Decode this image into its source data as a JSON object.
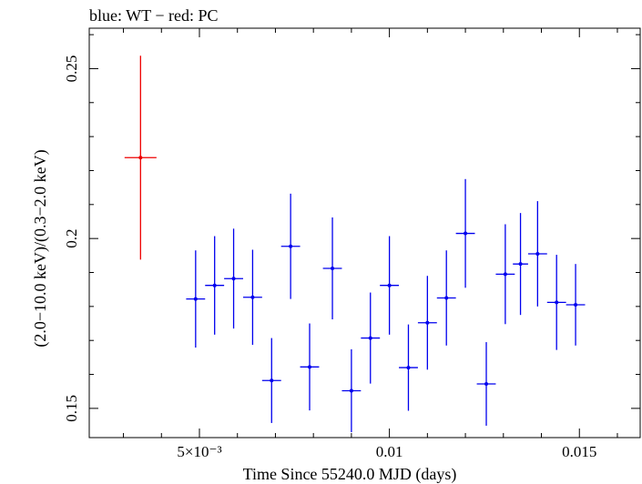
{
  "chart_data": {
    "type": "scatter",
    "title": "blue: WT − red: PC",
    "xlabel": "Time Since 55240.0 MJD (days)",
    "ylabel": "(2.0−10.0 keV)/(0.3−2.0 keV)",
    "xlim": [
      0.0021,
      0.0166
    ],
    "ylim": [
      0.1414,
      0.2619
    ],
    "x_ticks": [
      {
        "value": 0.005,
        "label": "5×10⁻³"
      },
      {
        "value": 0.01,
        "label": "0.01"
      },
      {
        "value": 0.015,
        "label": "0.015"
      }
    ],
    "y_ticks": [
      {
        "value": 0.15,
        "label": "0.15"
      },
      {
        "value": 0.2,
        "label": "0.2"
      },
      {
        "value": 0.25,
        "label": "0.25"
      }
    ],
    "grid": false,
    "series": [
      {
        "name": "WT",
        "color": "#0000ee",
        "points": [
          {
            "x": 0.0049,
            "y": 0.1822,
            "xerr": 0.00025,
            "yerr_low": 0.0143,
            "yerr_high": 0.0143
          },
          {
            "x": 0.0054,
            "y": 0.1862,
            "xerr": 0.00025,
            "yerr_low": 0.0145,
            "yerr_high": 0.0145
          },
          {
            "x": 0.0059,
            "y": 0.1882,
            "xerr": 0.00025,
            "yerr_low": 0.0147,
            "yerr_high": 0.0147
          },
          {
            "x": 0.0064,
            "y": 0.1827,
            "xerr": 0.00025,
            "yerr_low": 0.014,
            "yerr_high": 0.014
          },
          {
            "x": 0.0069,
            "y": 0.1582,
            "xerr": 0.00025,
            "yerr_low": 0.0125,
            "yerr_high": 0.0125
          },
          {
            "x": 0.0074,
            "y": 0.1977,
            "xerr": 0.00025,
            "yerr_low": 0.0155,
            "yerr_high": 0.0155
          },
          {
            "x": 0.0079,
            "y": 0.1622,
            "xerr": 0.00025,
            "yerr_low": 0.0128,
            "yerr_high": 0.0128
          },
          {
            "x": 0.0085,
            "y": 0.1912,
            "xerr": 0.00025,
            "yerr_low": 0.015,
            "yerr_high": 0.015
          },
          {
            "x": 0.009,
            "y": 0.1552,
            "xerr": 0.00025,
            "yerr_low": 0.0122,
            "yerr_high": 0.0122
          },
          {
            "x": 0.0095,
            "y": 0.1707,
            "xerr": 0.00025,
            "yerr_low": 0.0134,
            "yerr_high": 0.0134
          },
          {
            "x": 0.01,
            "y": 0.1862,
            "xerr": 0.00025,
            "yerr_low": 0.0145,
            "yerr_high": 0.0145
          },
          {
            "x": 0.0105,
            "y": 0.162,
            "xerr": 0.00025,
            "yerr_low": 0.0127,
            "yerr_high": 0.0127
          },
          {
            "x": 0.011,
            "y": 0.1752,
            "xerr": 0.00025,
            "yerr_low": 0.0138,
            "yerr_high": 0.0138
          },
          {
            "x": 0.0115,
            "y": 0.1825,
            "xerr": 0.00025,
            "yerr_low": 0.014,
            "yerr_high": 0.014
          },
          {
            "x": 0.012,
            "y": 0.2015,
            "xerr": 0.00025,
            "yerr_low": 0.016,
            "yerr_high": 0.016
          },
          {
            "x": 0.01255,
            "y": 0.1572,
            "xerr": 0.00025,
            "yerr_low": 0.0123,
            "yerr_high": 0.0123
          },
          {
            "x": 0.01305,
            "y": 0.1895,
            "xerr": 0.00025,
            "yerr_low": 0.0147,
            "yerr_high": 0.0147
          },
          {
            "x": 0.01345,
            "y": 0.1925,
            "xerr": 0.0002,
            "yerr_low": 0.015,
            "yerr_high": 0.015
          },
          {
            "x": 0.0139,
            "y": 0.1955,
            "xerr": 0.00025,
            "yerr_low": 0.0155,
            "yerr_high": 0.0155
          },
          {
            "x": 0.0144,
            "y": 0.1812,
            "xerr": 0.00025,
            "yerr_low": 0.014,
            "yerr_high": 0.014
          },
          {
            "x": 0.0149,
            "y": 0.1805,
            "xerr": 0.00025,
            "yerr_low": 0.012,
            "yerr_high": 0.012
          }
        ]
      },
      {
        "name": "PC",
        "color": "#ee0000",
        "points": [
          {
            "x": 0.00345,
            "y": 0.2238,
            "xerr": 0.00042,
            "yerr_low": 0.03,
            "yerr_high": 0.03
          }
        ]
      }
    ]
  }
}
